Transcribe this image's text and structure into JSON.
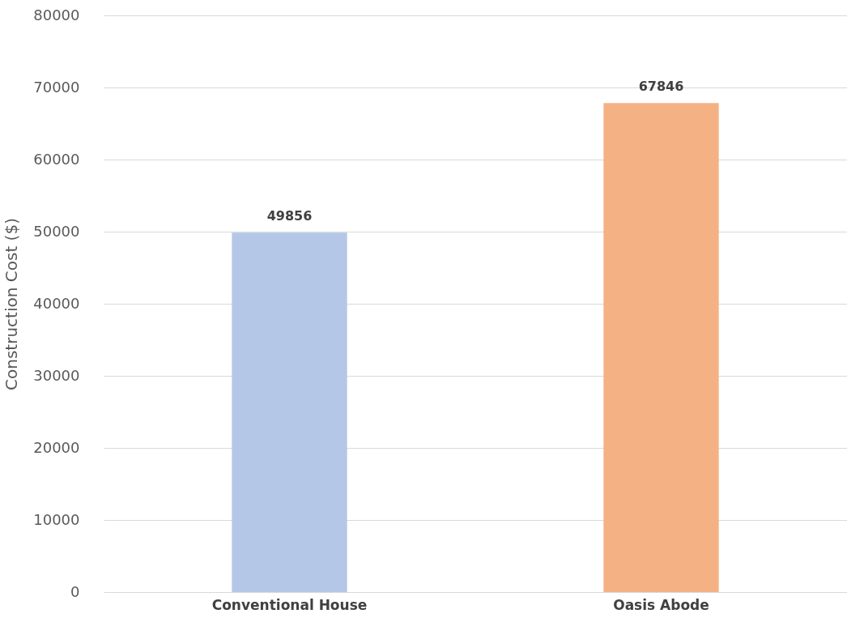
{
  "chart_data": {
    "type": "bar",
    "ylabel": "Construction Cost ($)",
    "categories": [
      "Conventional House",
      "Oasis Abode"
    ],
    "values": [
      49856,
      67846
    ],
    "colors": [
      "#b4c7e7",
      "#f4b183"
    ],
    "ylim": [
      0,
      80000
    ],
    "yticks": [
      0,
      10000,
      20000,
      30000,
      40000,
      50000,
      60000,
      70000,
      80000
    ],
    "grid": "y",
    "data_labels": true
  }
}
